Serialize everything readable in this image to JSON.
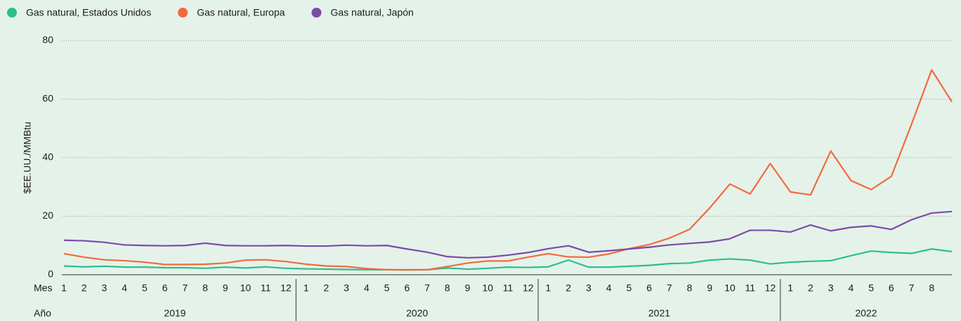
{
  "chart_data": {
    "type": "line",
    "y_label": "$EE.UU./MMBtu",
    "x_row_labels": [
      "Mes",
      "Año"
    ],
    "years": [
      "2019",
      "2020",
      "2021",
      "2022"
    ],
    "categories": [
      "1",
      "2",
      "3",
      "4",
      "5",
      "6",
      "7",
      "8",
      "9",
      "10",
      "11",
      "12",
      "1",
      "2",
      "3",
      "4",
      "5",
      "6",
      "7",
      "8",
      "9",
      "10",
      "11",
      "12",
      "1",
      "2",
      "3",
      "4",
      "5",
      "6",
      "7",
      "8",
      "9",
      "10",
      "11",
      "12",
      "1",
      "2",
      "3",
      "4",
      "5",
      "6",
      "7",
      "8",
      null
    ],
    "ylim": [
      0,
      80
    ],
    "yticks": [
      0,
      20,
      40,
      60,
      80
    ],
    "grid": true,
    "legend": "top",
    "series": [
      {
        "name": "Gas natural, Estados Unidos",
        "color": "#2bbf8e",
        "values": [
          3,
          2.7,
          2.9,
          2.6,
          2.6,
          2.4,
          2.4,
          2.2,
          2.6,
          2.3,
          2.7,
          2.2,
          2,
          1.9,
          1.8,
          1.7,
          1.7,
          1.6,
          1.7,
          2.3,
          1.9,
          2.2,
          2.6,
          2.5,
          2.7,
          5,
          2.6,
          2.6,
          2.9,
          3.2,
          3.8,
          4,
          5,
          5.4,
          5,
          3.7,
          4.3,
          4.6,
          4.8,
          6.5,
          8.1,
          7.6,
          7.3,
          8.8,
          7.9
        ]
      },
      {
        "name": "Gas natural, Europa",
        "color": "#f26a3d",
        "values": [
          7.2,
          6,
          5.1,
          4.8,
          4.3,
          3.5,
          3.5,
          3.6,
          4,
          5,
          5.1,
          4.5,
          3.6,
          3,
          2.8,
          2.1,
          1.7,
          1.7,
          1.7,
          2.8,
          4,
          4.7,
          4.7,
          6,
          7.2,
          6.1,
          6,
          7.1,
          8.9,
          10.3,
          12.5,
          15.5,
          22.8,
          31,
          27.6,
          38,
          28.3,
          27.3,
          42.3,
          32.2,
          29.1,
          33.6,
          51.4,
          70,
          59.1
        ]
      },
      {
        "name": "Gas natural, Japón",
        "color": "#7b4ba8",
        "values": [
          11.8,
          11.6,
          11.1,
          10.2,
          10,
          9.9,
          10,
          10.8,
          10,
          9.9,
          9.9,
          10,
          9.8,
          9.8,
          10.1,
          9.9,
          10,
          8.8,
          7.7,
          6.2,
          5.8,
          6,
          6.7,
          7.6,
          8.9,
          9.9,
          7.7,
          8.2,
          8.8,
          9.4,
          10.2,
          10.7,
          11.2,
          12.3,
          15.2,
          15.2,
          14.6,
          17,
          15,
          16.2,
          16.7,
          15.5,
          18.8,
          21.1,
          21.6
        ]
      }
    ]
  }
}
